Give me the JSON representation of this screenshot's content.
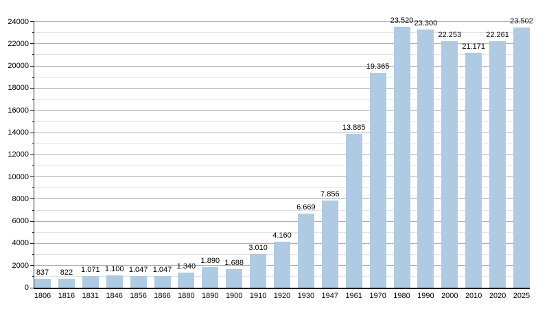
{
  "chart_data": {
    "type": "bar",
    "title": "",
    "xlabel": "",
    "ylabel": "",
    "categories": [
      "1806",
      "1816",
      "1831",
      "1846",
      "1856",
      "1866",
      "1880",
      "1890",
      "1900",
      "1910",
      "1920",
      "1930",
      "1947",
      "1961",
      "1970",
      "1980",
      "1990",
      "2000",
      "2010",
      "2020",
      "2025"
    ],
    "values": [
      837,
      822,
      1071,
      1100,
      1047,
      1047,
      1340,
      1890,
      1688,
      3010,
      4160,
      6669,
      7856,
      13885,
      19365,
      23520,
      23300,
      22253,
      21171,
      22261,
      23502
    ],
    "value_labels": [
      "837",
      "822",
      "1.071",
      "1.100",
      "1.047",
      "1.047",
      "1.340",
      "1.890",
      "1.688",
      "3.010",
      "4.160",
      "6.669",
      "7.856",
      "13.885",
      "19.365",
      "23.520",
      "23.300",
      "22.253",
      "21.171",
      "22.261",
      "23.502"
    ],
    "y_tick_labels": [
      "0",
      "2000",
      "4000",
      "6000",
      "8000",
      "10000",
      "12000",
      "14000",
      "16000",
      "18000",
      "20000",
      "22000",
      "24000"
    ],
    "ylim": [
      0,
      24000
    ],
    "y_major_step": 2000,
    "y_minor_step": 1000,
    "grid": "horizontal",
    "legend": "none",
    "bar_color": "#aecbe3",
    "axis_color": "#000000",
    "major_grid_color": "#adadad",
    "minor_grid_color": "#e2e2e2"
  }
}
